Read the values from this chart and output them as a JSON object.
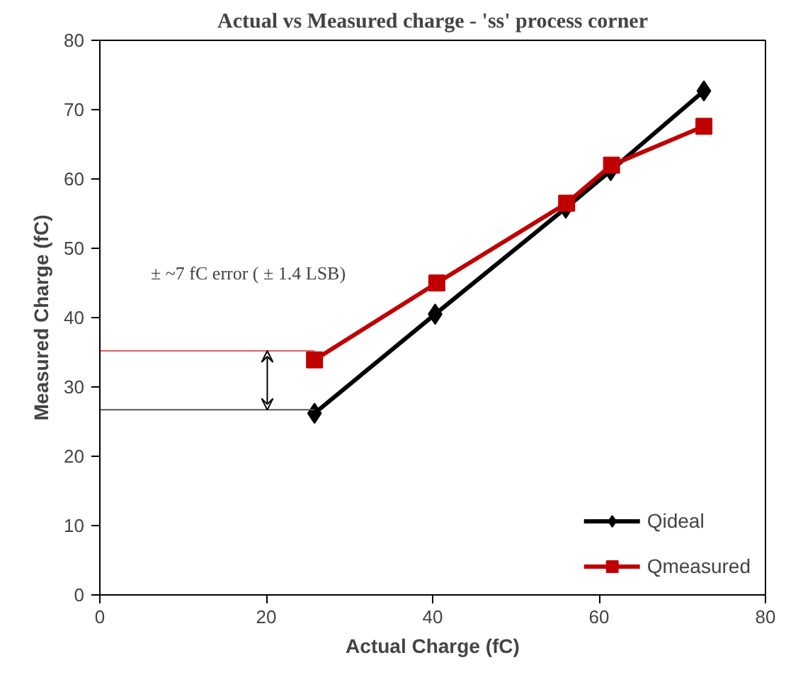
{
  "chart_data": {
    "type": "line",
    "title": "Actual vs Measured charge - 'ss' process corner",
    "xlabel": "Actual Charge (fC)",
    "ylabel": "Measured Charge (fC)",
    "xlim": [
      0,
      80
    ],
    "ylim": [
      0,
      80
    ],
    "xticks": [
      0,
      20,
      40,
      60,
      80
    ],
    "yticks": [
      0,
      10,
      20,
      30,
      40,
      50,
      60,
      70,
      80
    ],
    "grid": false,
    "legend": "bottom right",
    "series": [
      {
        "name": "Qideal",
        "color": "#000000",
        "marker": "diamond",
        "x": [
          25.8,
          40.3,
          56,
          61.4,
          72.6
        ],
        "values": [
          26.2,
          40.5,
          55.8,
          61.2,
          72.7
        ]
      },
      {
        "name": "Qmeasured",
        "color": "#c00000",
        "marker": "square",
        "x": [
          25.8,
          40.5,
          56.1,
          61.5,
          72.6
        ],
        "values": [
          33.9,
          45.0,
          56.5,
          62.0,
          67.6
        ]
      },
      {
        "color": "#e06060",
        "marker": "none",
        "x": [
          0,
          25.8
        ],
        "values": [
          35.2,
          35.2
        ]
      },
      {
        "color": "#555555",
        "marker": "none",
        "x": [
          0,
          25.8
        ],
        "values": [
          26.7,
          26.7
        ]
      }
    ],
    "annotations": [
      "± ~7 fC error ( ± 1.4 LSB)"
    ]
  }
}
